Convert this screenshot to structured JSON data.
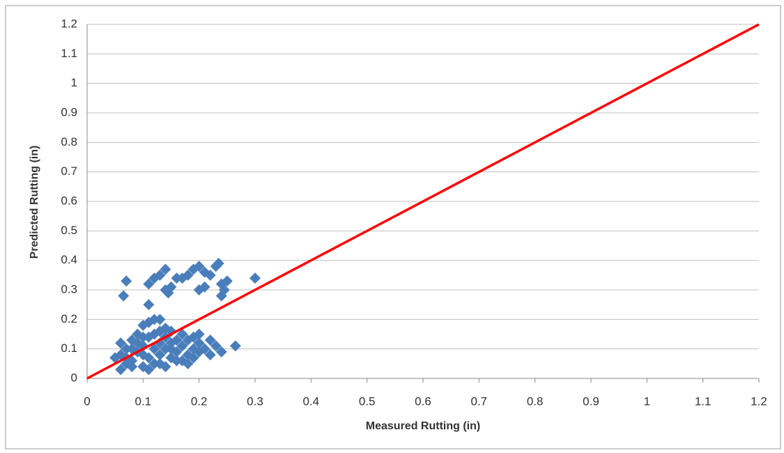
{
  "chart_data": {
    "type": "scatter",
    "xlabel": "Measured Rutting (in)",
    "ylabel": "Predicted Rutting (in)",
    "xlim": [
      0,
      1.2
    ],
    "ylim": [
      0,
      1.2
    ],
    "xticks": [
      0,
      0.1,
      0.2,
      0.3,
      0.4,
      0.5,
      0.6,
      0.7,
      0.8,
      0.9,
      1,
      1.1,
      1.2
    ],
    "yticks": [
      0,
      0.1,
      0.2,
      0.3,
      0.4,
      0.5,
      0.6,
      0.7,
      0.8,
      0.9,
      1,
      1.1,
      1.2
    ],
    "grid": true,
    "series": [
      {
        "type": "scatter",
        "color": "#4a7ebb",
        "x": [
          0.07,
          0.065,
          0.11,
          0.12,
          0.13,
          0.14,
          0.145,
          0.15,
          0.14,
          0.17,
          0.18,
          0.19,
          0.2,
          0.2,
          0.21,
          0.22,
          0.23,
          0.235,
          0.24,
          0.24,
          0.25,
          0.245,
          0.3,
          0.11,
          0.13,
          0.16,
          0.21,
          0.06,
          0.07,
          0.06,
          0.05,
          0.06,
          0.07,
          0.08,
          0.08,
          0.09,
          0.09,
          0.1,
          0.1,
          0.1,
          0.11,
          0.11,
          0.11,
          0.12,
          0.12,
          0.12,
          0.13,
          0.13,
          0.13,
          0.14,
          0.14,
          0.14,
          0.15,
          0.15,
          0.15,
          0.16,
          0.16,
          0.17,
          0.17,
          0.17,
          0.18,
          0.18,
          0.18,
          0.19,
          0.19,
          0.2,
          0.2,
          0.2,
          0.21,
          0.22,
          0.22,
          0.23,
          0.24,
          0.265,
          0.08,
          0.09,
          0.1,
          0.13,
          0.16,
          0.12,
          0.07,
          0.11,
          0.15,
          0.19,
          0.14,
          0.1,
          0.08
        ],
        "values": [
          0.33,
          0.28,
          0.32,
          0.34,
          0.35,
          0.37,
          0.29,
          0.31,
          0.3,
          0.34,
          0.35,
          0.37,
          0.38,
          0.3,
          0.31,
          0.35,
          0.38,
          0.39,
          0.32,
          0.28,
          0.33,
          0.3,
          0.34,
          0.25,
          0.2,
          0.34,
          0.36,
          0.03,
          0.05,
          0.08,
          0.07,
          0.12,
          0.1,
          0.06,
          0.13,
          0.09,
          0.15,
          0.04,
          0.11,
          0.18,
          0.07,
          0.14,
          0.19,
          0.05,
          0.1,
          0.15,
          0.08,
          0.12,
          0.16,
          0.04,
          0.1,
          0.14,
          0.07,
          0.12,
          0.16,
          0.09,
          0.13,
          0.06,
          0.11,
          0.15,
          0.08,
          0.13,
          0.05,
          0.1,
          0.14,
          0.09,
          0.12,
          0.15,
          0.1,
          0.08,
          0.13,
          0.11,
          0.09,
          0.11,
          0.04,
          0.12,
          0.08,
          0.05,
          0.06,
          0.2,
          0.07,
          0.03,
          0.1,
          0.07,
          0.17,
          0.14,
          0.1
        ]
      },
      {
        "type": "line",
        "color": "#ff0000",
        "x": [
          0,
          1.2
        ],
        "values": [
          0,
          1.2
        ]
      }
    ]
  }
}
